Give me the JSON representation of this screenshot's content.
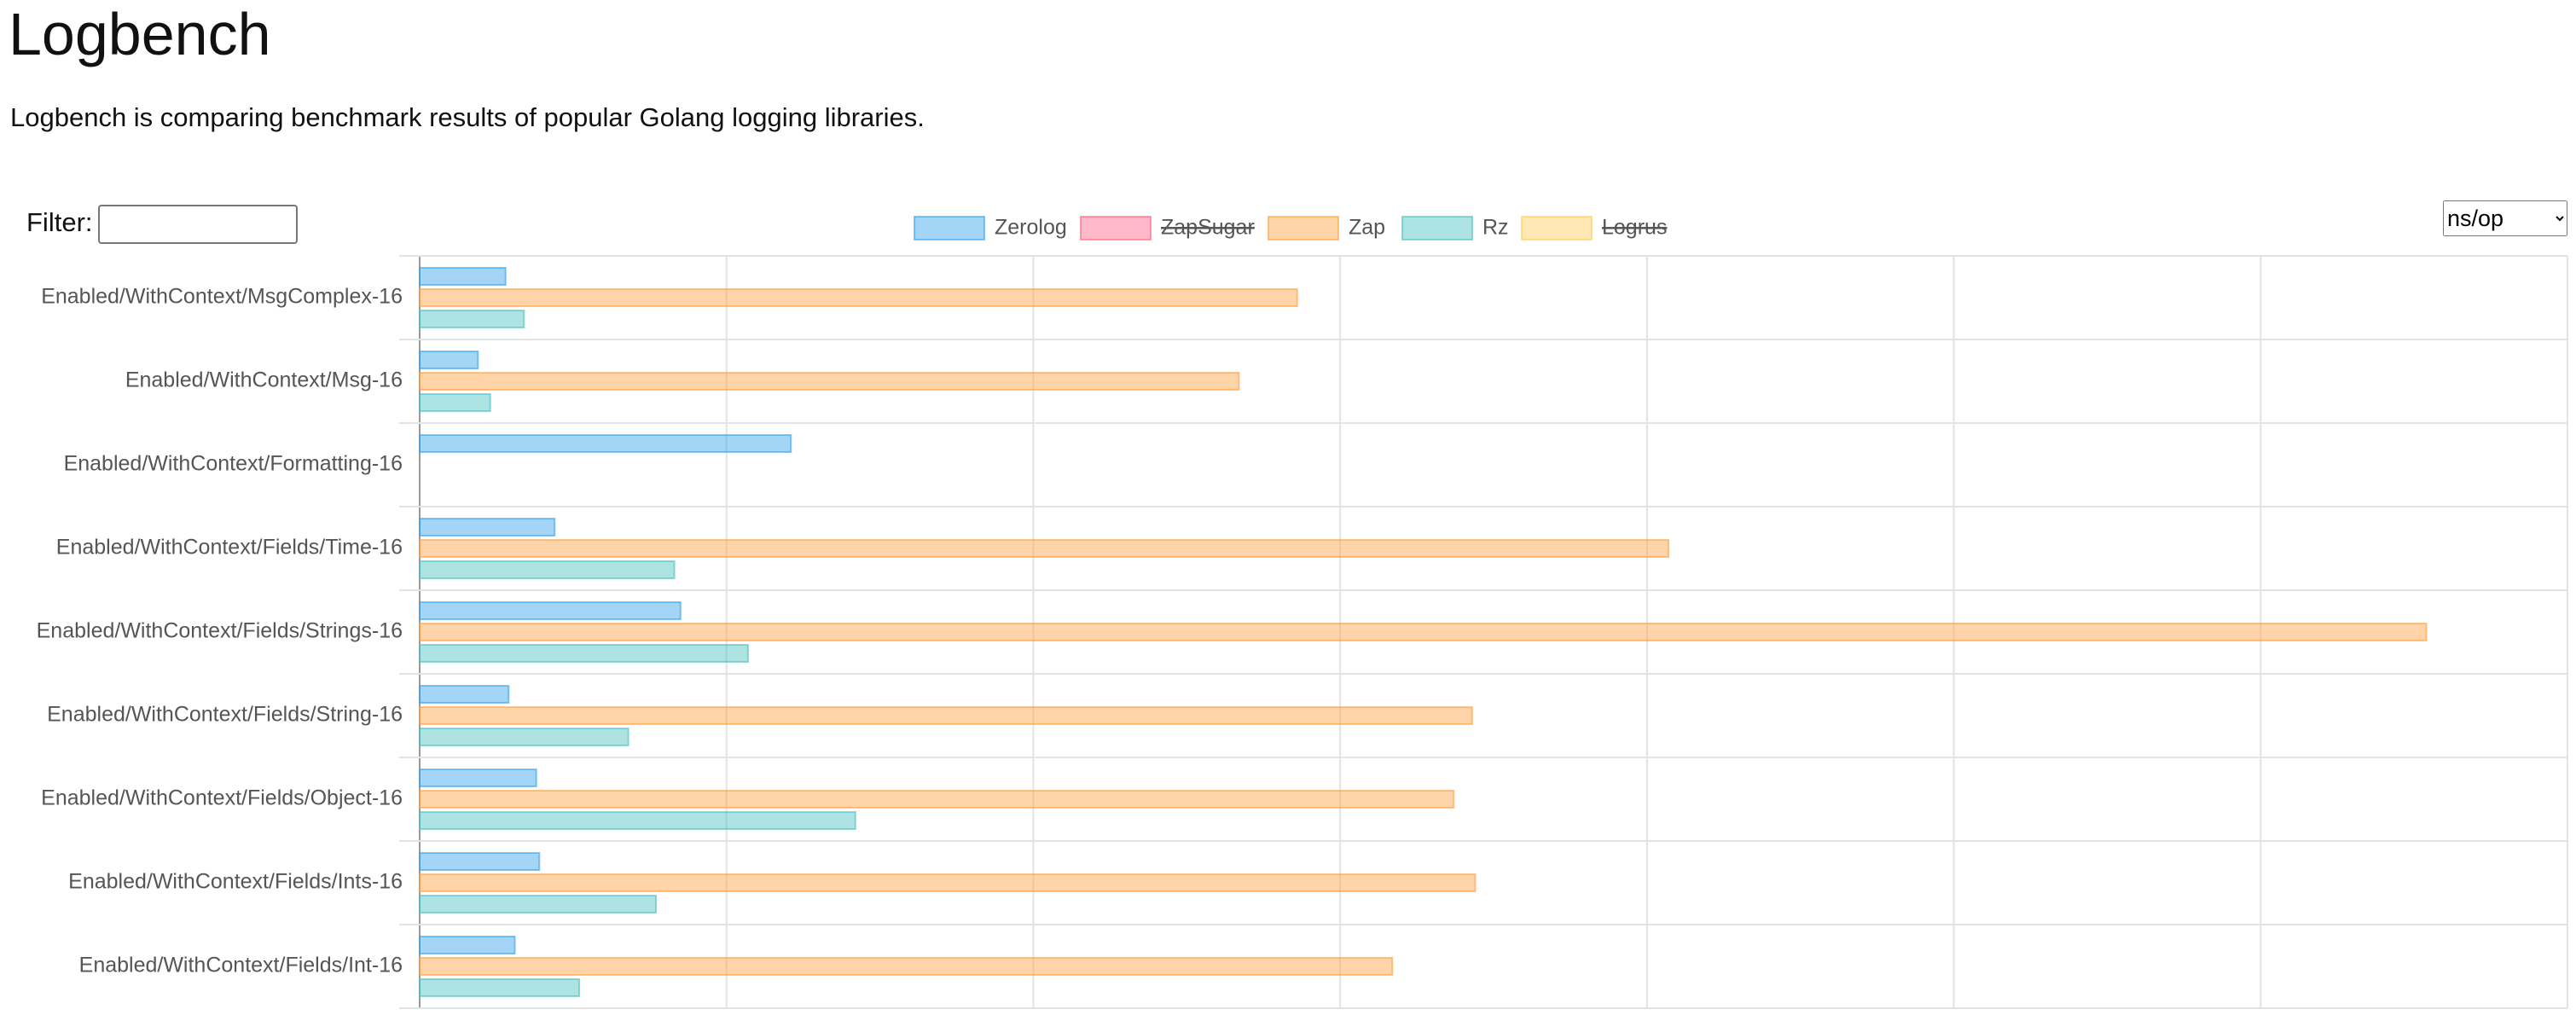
{
  "header": {
    "title": "Logbench",
    "description": "Logbench is comparing benchmark results of popular Golang logging libraries."
  },
  "controls": {
    "filter_label": "Filter:",
    "unit_select": "ns/op"
  },
  "chart_data": {
    "type": "hbar",
    "categories": [
      "Enabled/WithContext/MsgComplex-16",
      "Enabled/WithContext/Msg-16",
      "Enabled/WithContext/Formatting-16",
      "Enabled/WithContext/Fields/Time-16",
      "Enabled/WithContext/Fields/Strings-16",
      "Enabled/WithContext/Fields/String-16",
      "Enabled/WithContext/Fields/Object-16",
      "Enabled/WithContext/Fields/Ints-16",
      "Enabled/WithContext/Fields/Int-16"
    ],
    "series": [
      {
        "name": "Zerolog",
        "color": "#36a2eb",
        "values": [
          0.28,
          0.19,
          1.21,
          0.44,
          0.85,
          0.29,
          0.38,
          0.39,
          0.31
        ]
      },
      {
        "name": "ZapSugar",
        "color": "#ff6384",
        "hidden": true,
        "values": [
          null,
          null,
          null,
          null,
          null,
          null,
          null,
          null,
          null
        ]
      },
      {
        "name": "Zap",
        "color": "#ff9f40",
        "values": [
          2.86,
          2.67,
          null,
          4.07,
          6.54,
          3.43,
          3.37,
          3.44,
          3.17
        ]
      },
      {
        "name": "Rz",
        "color": "#4bc0c0",
        "values": [
          0.34,
          0.23,
          null,
          0.83,
          1.07,
          0.68,
          1.42,
          0.77,
          0.52
        ]
      },
      {
        "name": "Logrus",
        "color": "#ffcd56",
        "hidden": true,
        "values": [
          null,
          null,
          null,
          null,
          null,
          null,
          null,
          null,
          null
        ]
      }
    ],
    "xlim": [
      0,
      7
    ],
    "xticks": [
      0,
      1,
      2,
      3,
      4,
      5,
      6,
      7
    ],
    "grid": true
  }
}
